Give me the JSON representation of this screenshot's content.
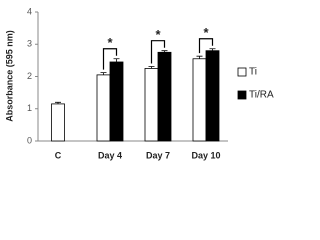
{
  "chart_data": {
    "type": "bar",
    "ylabel": "Absorbance (595 nm)",
    "categories": [
      "C",
      "Day 4",
      "Day 7",
      "Day 10"
    ],
    "series": [
      {
        "name": "Ti",
        "color": "#ffffff",
        "values": [
          1.15,
          2.05,
          2.25,
          2.55
        ],
        "errors": [
          0.05,
          0.07,
          0.06,
          0.08
        ]
      },
      {
        "name": "Ti/RA",
        "color": "#000000",
        "values": [
          null,
          2.45,
          2.75,
          2.8
        ],
        "errors": [
          null,
          0.1,
          0.05,
          0.06
        ]
      }
    ],
    "annotations": [
      "*",
      "*",
      "*"
    ],
    "ylim": [
      0,
      4
    ],
    "yticks": [
      0,
      1,
      2,
      3,
      4
    ],
    "legend": "right"
  }
}
